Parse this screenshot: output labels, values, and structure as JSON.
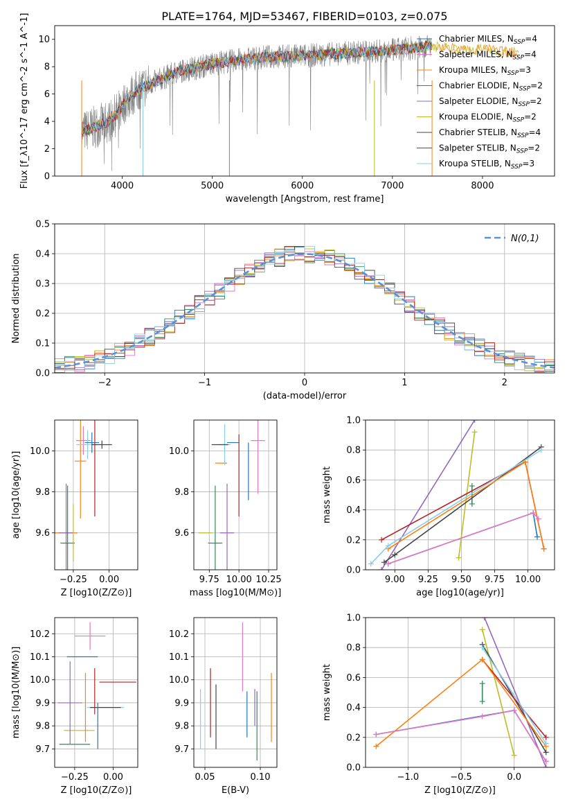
{
  "figure_title": "PLATE=1764, MJD=53467, FIBERID=0103, z=0.075",
  "fit_colors": [
    "#1f77b4",
    "#e377c2",
    "#ff7f0e",
    "#2e8b57",
    "#9467bd",
    "#bcbd22",
    "#444444",
    "#b22222",
    "#87ceeb"
  ],
  "chart_data": [
    {
      "id": "spectrum",
      "type": "line",
      "xlabel": "wavelength [Angstrom, rest frame]",
      "ylabel": "Flux [f_λ10^-17 erg cm^-2 s^-1 A^-1]",
      "xlim": [
        3250,
        8800
      ],
      "ylim": [
        0,
        11
      ],
      "xticks": [
        4000,
        5000,
        6000,
        7000,
        8000
      ],
      "yticks": [
        0,
        2,
        4,
        6,
        8,
        10
      ],
      "legend": [
        {
          "label": "Chabrier MILES, N_SSP=4",
          "color": "#1f77b4"
        },
        {
          "label": "Salpeter MILES, N_SSP=4",
          "color": "#e377c2"
        },
        {
          "label": "Kroupa MILES, N_SSP=3",
          "color": "#ff7f0e"
        },
        {
          "label": "Chabrier ELODIE, N_SSP=2",
          "color": "#2e8b57"
        },
        {
          "label": "Salpeter ELODIE, N_SSP=2",
          "color": "#9467bd"
        },
        {
          "label": "Kroupa ELODIE, N_SSP=2",
          "color": "#bcbd22"
        },
        {
          "label": "Chabrier STELIB, N_SSP=4",
          "color": "#444444"
        },
        {
          "label": "Salpeter STELIB, N_SSP=2",
          "color": "#b22222"
        },
        {
          "label": "Kroupa STELIB, N_SSP=3",
          "color": "#87ceeb"
        }
      ],
      "continuum": {
        "wavelength": [
          3550,
          3700,
          3850,
          3950,
          4050,
          4200,
          4400,
          4600,
          4800,
          5000,
          5300,
          5600,
          6000,
          6500,
          7000,
          7300,
          7450
        ],
        "flux": [
          3.2,
          3.6,
          4.0,
          4.6,
          5.6,
          6.4,
          7.0,
          7.6,
          7.9,
          8.2,
          8.5,
          8.7,
          8.8,
          9.0,
          9.2,
          9.4,
          9.6
        ]
      },
      "model_extra": {
        "wavelength": [
          7400,
          7600,
          7800,
          8000,
          8200,
          8400
        ],
        "flux": [
          9.5,
          9.4,
          9.2,
          9.3,
          9.1,
          9.0
        ]
      }
    },
    {
      "id": "residuals",
      "type": "line",
      "xlabel": "(data-model)/error",
      "ylabel": "Normed distribution",
      "xlim": [
        -2.5,
        2.5
      ],
      "ylim": [
        0,
        0.5
      ],
      "xticks": [
        -2,
        -1,
        0,
        1,
        2
      ],
      "yticks": [
        0.0,
        0.1,
        0.2,
        0.3,
        0.4,
        0.5
      ],
      "grid": true,
      "legend_label": "N(0,1)",
      "legend_color": "#5b8fd6"
    },
    {
      "id": "age-vs-Z",
      "type": "scatter",
      "xlabel": "Z [log10(Z/Z⊙)]",
      "ylabel": "age [log10(age/yr)]",
      "xlim": [
        -0.38,
        0.2
      ],
      "ylim": [
        9.42,
        10.15
      ],
      "xticks": [
        -0.25,
        0.0
      ],
      "yticks": [
        9.6,
        9.8,
        10.0
      ],
      "grid": true,
      "points": [
        {
          "x": -0.32,
          "y": 9.6,
          "xerr": 0.1,
          "yerr": 0.0,
          "color": "#ff7f0e"
        },
        {
          "x": -0.3,
          "y": 9.6,
          "xerr": 0.05,
          "yerr": 0.24,
          "color": "#9467bd"
        },
        {
          "x": -0.29,
          "y": 9.55,
          "xerr": 0.05,
          "yerr": 0.28,
          "color": "#2e8b57"
        },
        {
          "x": -0.25,
          "y": 9.6,
          "xerr": 0.0,
          "yerr": 0.14,
          "color": "#bcbd22"
        },
        {
          "x": -0.2,
          "y": 9.95,
          "xerr": 0.04,
          "yerr": 0.28,
          "color": "#ff7f0e"
        },
        {
          "x": -0.18,
          "y": 10.05,
          "xerr": 0.05,
          "yerr": 0.07,
          "color": "#e377c2"
        },
        {
          "x": -0.15,
          "y": 10.03,
          "xerr": 0.08,
          "yerr": 0.07,
          "color": "#87ceeb"
        },
        {
          "x": -0.12,
          "y": 10.04,
          "xerr": 0.05,
          "yerr": 0.05,
          "color": "#1f77b4"
        },
        {
          "x": -0.1,
          "y": 9.95,
          "xerr": 0.0,
          "yerr": 0.27,
          "color": "#b22222"
        },
        {
          "x": -0.05,
          "y": 10.03,
          "xerr": 0.07,
          "yerr": 0.02,
          "color": "#444444"
        }
      ]
    },
    {
      "id": "age-vs-mass",
      "type": "scatter",
      "xlabel": "mass [log10(M/M⊙)]",
      "xlim": [
        9.62,
        10.32
      ],
      "ylim": [
        9.42,
        10.15
      ],
      "xticks": [
        9.75,
        10.0,
        10.25
      ],
      "yticks": [
        9.6,
        9.8,
        10.0
      ],
      "grid": true,
      "points": [
        {
          "x": 9.72,
          "y": 9.6,
          "xerr": 0.06,
          "yerr": 0.0,
          "color": "#bcbd22"
        },
        {
          "x": 9.8,
          "y": 9.55,
          "xerr": 0.06,
          "yerr": 0.28,
          "color": "#2e8b57"
        },
        {
          "x": 9.9,
          "y": 9.6,
          "xerr": 0.06,
          "yerr": 0.24,
          "color": "#9467bd"
        },
        {
          "x": 9.85,
          "y": 9.94,
          "xerr": 0.05,
          "yerr": 0.0,
          "color": "#ff7f0e"
        },
        {
          "x": 9.88,
          "y": 10.03,
          "xerr": 0.05,
          "yerr": 0.1,
          "color": "#87ceeb"
        },
        {
          "x": 9.95,
          "y": 10.04,
          "xerr": 0.05,
          "yerr": 0.0,
          "color": "#1f77b4"
        },
        {
          "x": 10.0,
          "y": 9.88,
          "xerr": 0.0,
          "yerr": 0.2,
          "color": "#b22222"
        },
        {
          "x": 10.08,
          "y": 9.9,
          "xerr": 0.0,
          "yerr": 0.14,
          "color": "#1f77b4"
        },
        {
          "x": 10.16,
          "y": 10.05,
          "xerr": 0.06,
          "yerr": 0.26,
          "color": "#e377c2"
        },
        {
          "x": 9.84,
          "y": 10.03,
          "xerr": 0.07,
          "yerr": 0.0,
          "color": "#444444"
        }
      ]
    },
    {
      "id": "weight-vs-age",
      "type": "line",
      "xlabel": "age [log10(age/yr)]",
      "ylabel": "mass weight",
      "xlim": [
        8.78,
        10.2
      ],
      "ylim": [
        0,
        1
      ],
      "xticks": [
        9.0,
        9.25,
        9.5,
        9.75,
        10.0
      ],
      "yticks": [
        0.0,
        0.2,
        0.4,
        0.6,
        0.8,
        1.0
      ],
      "grid": true,
      "series": [
        {
          "color": "#9467bd",
          "x": [
            8.9,
            9.6
          ],
          "y": [
            0.0,
            1.0
          ]
        },
        {
          "color": "#bcbd22",
          "x": [
            9.48,
            9.6
          ],
          "y": [
            0.08,
            0.92
          ]
        },
        {
          "color": "#2e8b57",
          "x": [
            9.58,
            9.58
          ],
          "y": [
            0.44,
            0.56
          ]
        },
        {
          "color": "#444444",
          "x": [
            8.92,
            9.0,
            10.1
          ],
          "y": [
            0.05,
            0.1,
            0.82
          ]
        },
        {
          "color": "#b22222",
          "x": [
            8.9,
            9.98,
            10.12
          ],
          "y": [
            0.2,
            0.72,
            0.14
          ]
        },
        {
          "color": "#ff7f0e",
          "x": [
            8.95,
            9.98,
            10.12
          ],
          "y": [
            0.14,
            0.72,
            0.14
          ]
        },
        {
          "color": "#87ceeb",
          "x": [
            8.82,
            8.95,
            10.1
          ],
          "y": [
            0.04,
            0.16,
            0.8
          ]
        },
        {
          "color": "#1f77b4",
          "x": [
            8.95,
            10.04,
            10.07
          ],
          "y": [
            0.04,
            0.38,
            0.22
          ]
        },
        {
          "color": "#e377c2",
          "x": [
            8.95,
            10.04,
            10.08
          ],
          "y": [
            0.04,
            0.38,
            0.34
          ]
        }
      ]
    },
    {
      "id": "mass-vs-Z",
      "type": "scatter",
      "xlabel": "Z [log10(Z/Z⊙)]",
      "ylabel": "mass [log10(M/M⊙)]",
      "xlim": [
        -0.38,
        0.16
      ],
      "ylim": [
        9.62,
        10.27
      ],
      "xticks": [
        -0.25,
        0.0
      ],
      "yticks": [
        9.7,
        9.8,
        9.9,
        10.0,
        10.1,
        10.2
      ],
      "grid": true,
      "points": [
        {
          "x": -0.25,
          "y": 9.72,
          "xerr": 0.1,
          "yerr": 0.0,
          "color": "#2e8b57"
        },
        {
          "x": -0.22,
          "y": 9.78,
          "xerr": 0.1,
          "yerr": 0.0,
          "color": "#bcbd22"
        },
        {
          "x": -0.28,
          "y": 9.9,
          "xerr": 0.08,
          "yerr": 0.18,
          "color": "#9467bd"
        },
        {
          "x": -0.18,
          "y": 9.88,
          "xerr": 0.0,
          "yerr": 0.15,
          "color": "#ff7f0e"
        },
        {
          "x": -0.2,
          "y": 10.1,
          "xerr": 0.1,
          "yerr": 0.0,
          "color": "#1f77b4"
        },
        {
          "x": -0.15,
          "y": 10.19,
          "xerr": 0.1,
          "yerr": 0.06,
          "color": "#e377c2"
        },
        {
          "x": -0.05,
          "y": 9.88,
          "xerr": 0.12,
          "yerr": 0.0,
          "color": "#87ceeb"
        },
        {
          "x": 0.03,
          "y": 9.99,
          "xerr": 0.12,
          "yerr": 0.0,
          "color": "#b22222"
        },
        {
          "x": -0.12,
          "y": 9.95,
          "xerr": 0.0,
          "yerr": 0.1,
          "color": "#b22222"
        },
        {
          "x": -0.05,
          "y": 9.88,
          "xerr": 0.1,
          "yerr": 0.0,
          "color": "#444444"
        },
        {
          "x": -0.1,
          "y": 9.8,
          "xerr": 0.0,
          "yerr": 0.1,
          "color": "#1f77b4"
        }
      ]
    },
    {
      "id": "mass-vs-ebv",
      "type": "scatter",
      "xlabel": "E(B-V)",
      "xlim": [
        0.04,
        0.115
      ],
      "ylim": [
        9.62,
        10.27
      ],
      "xticks": [
        0.05,
        0.1
      ],
      "yticks": [
        9.7,
        9.8,
        9.9,
        10.0,
        10.1,
        10.2
      ],
      "grid": true,
      "points": [
        {
          "x": 0.046,
          "y": 9.83,
          "xerr": 0.0,
          "yerr": 0.13,
          "color": "#87ceeb"
        },
        {
          "x": 0.055,
          "y": 9.9,
          "xerr": 0.0,
          "yerr": 0.15,
          "color": "#b22222"
        },
        {
          "x": 0.06,
          "y": 9.84,
          "xerr": 0.0,
          "yerr": 0.14,
          "color": "#444444"
        },
        {
          "x": 0.084,
          "y": 10.1,
          "xerr": 0.0,
          "yerr": 0.15,
          "color": "#e377c2"
        },
        {
          "x": 0.088,
          "y": 9.85,
          "xerr": 0.0,
          "yerr": 0.1,
          "color": "#1f77b4"
        },
        {
          "x": 0.095,
          "y": 9.88,
          "xerr": 0.0,
          "yerr": 0.08,
          "color": "#9467bd"
        },
        {
          "x": 0.097,
          "y": 9.8,
          "xerr": 0.0,
          "yerr": 0.15,
          "color": "#2e8b57"
        },
        {
          "x": 0.11,
          "y": 9.88,
          "xerr": 0.0,
          "yerr": 0.15,
          "color": "#ff7f0e"
        }
      ]
    },
    {
      "id": "weight-vs-Z",
      "type": "line",
      "xlabel": "Z [log10(Z/Z⊙)]",
      "ylabel": "mass weight",
      "xlim": [
        -1.4,
        0.38
      ],
      "ylim": [
        0,
        1
      ],
      "xticks": [
        -1.0,
        -0.5,
        0.0
      ],
      "yticks": [
        0.0,
        0.2,
        0.4,
        0.6,
        0.8,
        1.0
      ],
      "grid": true,
      "series": [
        {
          "color": "#9467bd",
          "x": [
            -0.28,
            0.3
          ],
          "y": [
            1.0,
            0.0
          ]
        },
        {
          "color": "#bcbd22",
          "x": [
            -0.3,
            0.0
          ],
          "y": [
            0.92,
            0.08
          ]
        },
        {
          "color": "#2e8b57",
          "x": [
            -0.3,
            -0.3
          ],
          "y": [
            0.44,
            0.56
          ]
        },
        {
          "color": "#444444",
          "x": [
            -0.3,
            0.3
          ],
          "y": [
            0.82,
            0.1
          ]
        },
        {
          "color": "#b22222",
          "x": [
            -0.3,
            0.3
          ],
          "y": [
            0.72,
            0.2
          ]
        },
        {
          "color": "#ff7f0e",
          "x": [
            -1.3,
            -0.3,
            0.3
          ],
          "y": [
            0.14,
            0.72,
            0.14
          ]
        },
        {
          "color": "#87ceeb",
          "x": [
            -0.3,
            0.3
          ],
          "y": [
            0.8,
            0.16
          ]
        },
        {
          "color": "#1f77b4",
          "x": [
            -1.3,
            0.0,
            0.3
          ],
          "y": [
            0.22,
            0.38,
            0.04
          ]
        },
        {
          "color": "#e377c2",
          "x": [
            -1.3,
            -0.3,
            0.0,
            0.3
          ],
          "y": [
            0.22,
            0.34,
            0.38,
            0.04
          ]
        }
      ]
    }
  ]
}
